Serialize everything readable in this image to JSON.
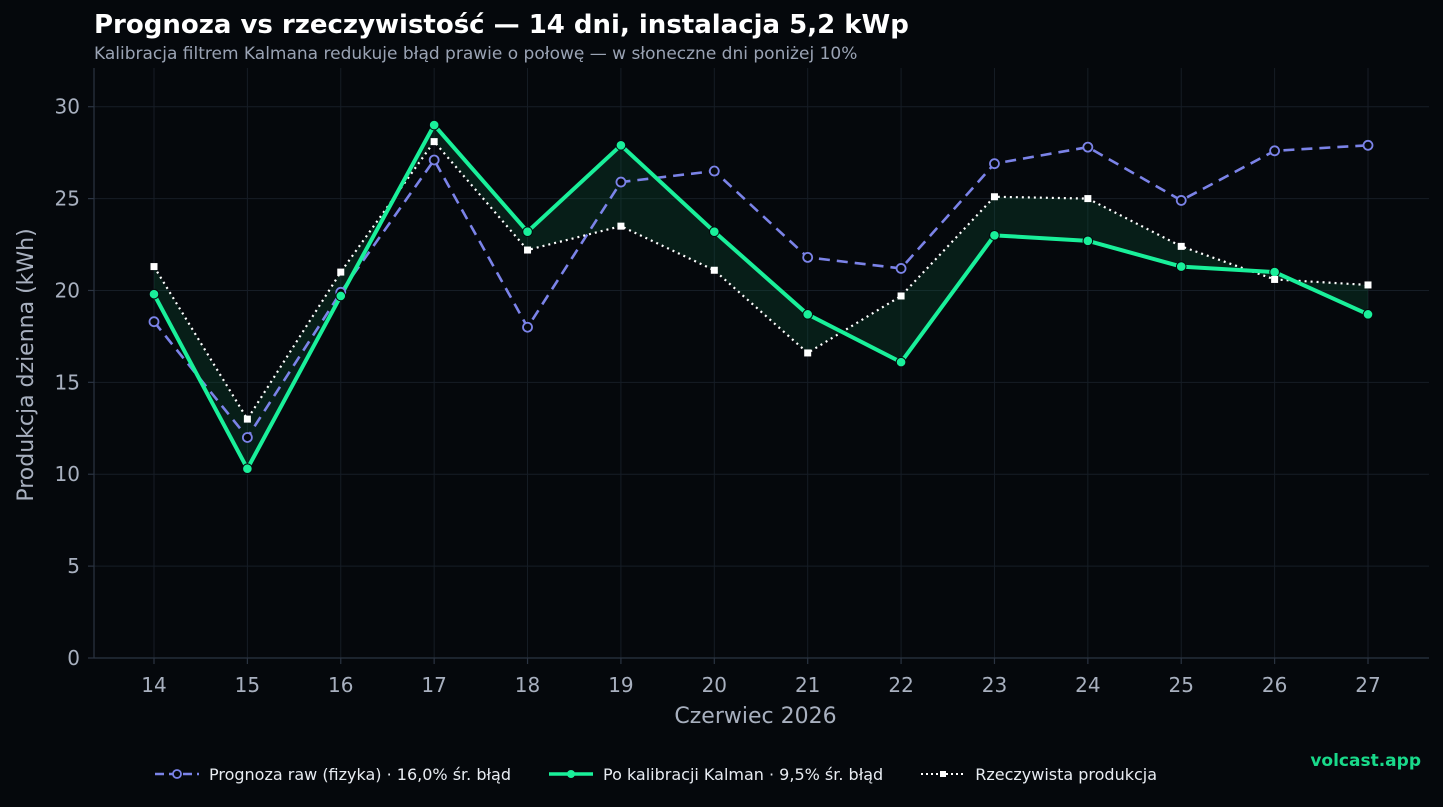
{
  "chart_data": {
    "type": "line",
    "title": "Prognoza vs rzeczywistość — 14 dni, instalacja 5,2 kWp",
    "subtitle": "Kalibracja filtrem Kalmana redukuje błąd prawie o połowę — w słoneczne dni poniżej 10%",
    "xlabel": "Czerwiec 2026",
    "ylabel": "Produkcja dzienna (kWh)",
    "x": [
      "14",
      "15",
      "16",
      "17",
      "18",
      "19",
      "20",
      "21",
      "22",
      "23",
      "24",
      "25",
      "26",
      "27"
    ],
    "ylim": [
      0,
      32
    ],
    "yticks": [
      "0",
      "5",
      "10",
      "15",
      "20",
      "25",
      "30"
    ],
    "grid": true,
    "legend_position": "bottom",
    "series": [
      {
        "name": "Prognoza raw (fizyka)  ·  16,0% śr. błąd",
        "color": "#7b83e8",
        "style": "dashed",
        "marker": "hollow-circle",
        "values": [
          18.3,
          12.0,
          19.9,
          27.1,
          18.0,
          25.9,
          26.5,
          21.8,
          21.2,
          26.9,
          27.8,
          24.9,
          27.6,
          27.9
        ]
      },
      {
        "name": "Po kalibracji Kalman  ·  9,5% śr. błąd",
        "color": "#19f09a",
        "style": "solid",
        "marker": "filled-circle",
        "values": [
          19.8,
          10.3,
          19.7,
          29.0,
          23.2,
          27.9,
          23.2,
          18.7,
          16.1,
          23.0,
          22.7,
          21.3,
          21.0,
          18.7
        ]
      },
      {
        "name": "Rzeczywista produkcja",
        "color": "#ffffff",
        "style": "dotted",
        "marker": "square",
        "values": [
          21.3,
          13.0,
          21.0,
          28.1,
          22.2,
          23.5,
          21.1,
          16.6,
          19.7,
          25.1,
          25.0,
          22.4,
          20.6,
          20.3
        ]
      }
    ],
    "shaded_between": [
      "Po kalibracji Kalman  ·  9,5% śr. błąd",
      "Rzeczywista produkcja"
    ]
  },
  "brand": "volcast.app",
  "colors": {
    "background": "#05080c",
    "grid": "#161d26",
    "axis": "#2b3442",
    "text_muted": "#a8b0bf",
    "fill": "#0b3a26"
  }
}
